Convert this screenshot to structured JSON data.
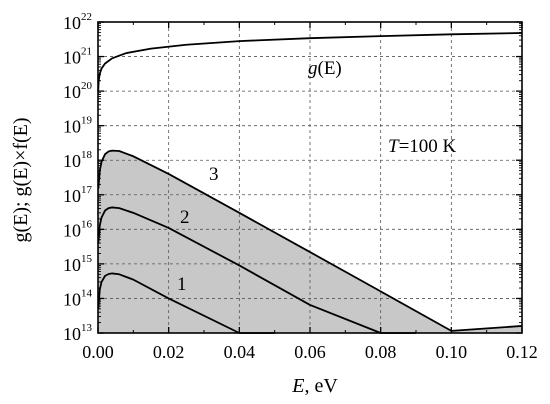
{
  "chart_data": {
    "type": "line",
    "xlabel": "E, eV",
    "xlabel_italic": "E",
    "xlabel_rest": ", eV",
    "ylabel": "g(E); g(E)×f(E)",
    "xlim": [
      0,
      0.12
    ],
    "ylim_exp": [
      13,
      22
    ],
    "y_scale": "log",
    "x_ticks": [
      "0.00",
      "0.02",
      "0.04",
      "0.06",
      "0.08",
      "0.10",
      "0.12"
    ],
    "y_tick_base": "10",
    "y_tick_exps": [
      "13",
      "14",
      "15",
      "16",
      "17",
      "18",
      "19",
      "20",
      "21",
      "22"
    ],
    "grid": "dashed",
    "temperature_label": {
      "italic": "T",
      "rest": "=100 K"
    },
    "series": [
      {
        "name": "g(E)",
        "label_italic": "g",
        "label_rest": "(E)",
        "points": [
          [
            5e-05,
            1e+20
          ],
          [
            0.0002,
            2e+20
          ],
          [
            0.0005,
            3.2e+20
          ],
          [
            0.001,
            4.5e+20
          ],
          [
            0.002,
            6.3e+20
          ],
          [
            0.004,
            8.9e+20
          ],
          [
            0.008,
            1.26e+21
          ],
          [
            0.015,
            1.7e+21
          ],
          [
            0.025,
            2.2e+21
          ],
          [
            0.04,
            2.8e+21
          ],
          [
            0.06,
            3.4e+21
          ],
          [
            0.08,
            3.9e+21
          ],
          [
            0.1,
            4.4e+21
          ],
          [
            0.12,
            4.8e+21
          ]
        ]
      },
      {
        "name": "3",
        "filled": true,
        "points": [
          [
            0.0001,
            1.5e+17
          ],
          [
            0.0005,
            5e+17
          ],
          [
            0.001,
            9e+17
          ],
          [
            0.002,
            1.5e+18
          ],
          [
            0.003,
            1.8e+18
          ],
          [
            0.004,
            1.9e+18
          ],
          [
            0.006,
            1.85e+18
          ],
          [
            0.01,
            1.3e+18
          ],
          [
            0.02,
            4e+17
          ],
          [
            0.04,
            3e+16
          ],
          [
            0.06,
            2200000000000000.0
          ],
          [
            0.08,
            160000000000000.0
          ],
          [
            0.1,
            11500000000000.0
          ],
          [
            0.12,
            16000000000000.0
          ]
        ]
      },
      {
        "name": "2",
        "points": [
          [
            0.0001,
            4000000000000000.0
          ],
          [
            0.0005,
            1.3e+16
          ],
          [
            0.001,
            2.2e+16
          ],
          [
            0.002,
            3.5e+16
          ],
          [
            0.003,
            4.1e+16
          ],
          [
            0.004,
            4.3e+16
          ],
          [
            0.006,
            4.1e+16
          ],
          [
            0.01,
            3e+16
          ],
          [
            0.02,
            1.1e+16
          ],
          [
            0.04,
            900000000000000.0
          ],
          [
            0.06,
            65000000000000.0
          ],
          [
            0.08,
            5000000000000.0
          ],
          [
            0.09,
            10000000000000.0
          ]
        ]
      },
      {
        "name": "1",
        "points": [
          [
            0.0001,
            50000000000000.0
          ],
          [
            0.0005,
            180000000000000.0
          ],
          [
            0.001,
            300000000000000.0
          ],
          [
            0.002,
            450000000000000.0
          ],
          [
            0.003,
            510000000000000.0
          ],
          [
            0.004,
            530000000000000.0
          ],
          [
            0.006,
            500000000000000.0
          ],
          [
            0.01,
            350000000000000.0
          ],
          [
            0.02,
            100000000000000.0
          ],
          [
            0.04,
            8000000000000.0
          ],
          [
            0.05,
            10000000000000.0
          ]
        ]
      }
    ]
  }
}
